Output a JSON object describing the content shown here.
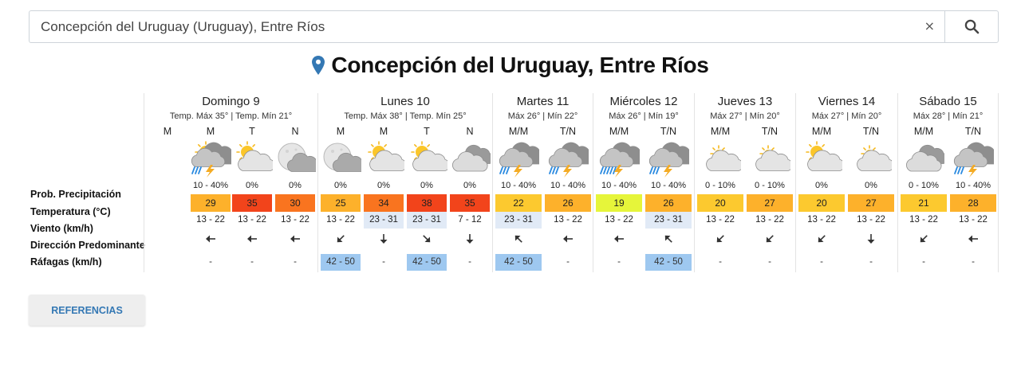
{
  "search": {
    "value": "Concepción del Uruguay (Uruguay), Entre Ríos",
    "clear_glyph": "×"
  },
  "title": "Concepción del Uruguay, Entre Ríos",
  "row_labels": {
    "precip": "Prob. Precipitación",
    "temp": "Temperatura (°C)",
    "wind": "Viento (km/h)",
    "dir": "Dirección Predominante",
    "gust": "Ráfagas (km/h)"
  },
  "colors": {
    "accent": "#3478b4",
    "temp_19": "#e6f53a",
    "temp_20_22": "#fcc92f",
    "temp_25_29": "#fdb12b",
    "temp_30_34": "#f9741f",
    "temp_35_38": "#f2441b",
    "wind_highlight": "#e1eaf6",
    "gust_highlight": "#9ec8f0"
  },
  "days": [
    {
      "name": "Domingo 9",
      "temps": "Temp. Máx 35° | Temp. Mín 21°",
      "periods": [
        {
          "label": "M",
          "icon": "none",
          "prob": "",
          "temp": "",
          "wind": "",
          "dir": "",
          "gust": ""
        },
        {
          "label": "M",
          "icon": "cloud-storm-sun-icon",
          "prob": "10 - 40%",
          "temp": "29",
          "wind": "13 - 22",
          "dir": "left",
          "gust": "-"
        },
        {
          "label": "T",
          "icon": "cloud-sun-icon",
          "prob": "0%",
          "temp": "35",
          "wind": "13 - 22",
          "dir": "left",
          "gust": "-"
        },
        {
          "label": "N",
          "icon": "cloud-moon-icon",
          "prob": "0%",
          "temp": "30",
          "wind": "13 - 22",
          "dir": "left",
          "gust": "-"
        }
      ]
    },
    {
      "name": "Lunes 10",
      "temps": "Temp. Máx 38° | Temp. Mín 25°",
      "periods": [
        {
          "label": "M",
          "icon": "cloud-moon-icon",
          "prob": "0%",
          "temp": "25",
          "wind": "13 - 22",
          "dir": "down-left",
          "gust": "42 - 50"
        },
        {
          "label": "M",
          "icon": "cloud-sun-icon",
          "prob": "0%",
          "temp": "34",
          "wind": "23 - 31",
          "dir": "down",
          "gust": "-"
        },
        {
          "label": "T",
          "icon": "cloud-sun-icon",
          "prob": "0%",
          "temp": "38",
          "wind": "23 - 31",
          "dir": "down-right",
          "gust": "42 - 50"
        },
        {
          "label": "N",
          "icon": "cloud-icon",
          "prob": "0%",
          "temp": "35",
          "wind": "7 - 12",
          "dir": "down",
          "gust": "-"
        }
      ]
    },
    {
      "name": "Martes 11",
      "temps": "Máx 26° | Mín 22°",
      "periods": [
        {
          "label": "M/M",
          "icon": "cloud-storm-icon",
          "prob": "10 - 40%",
          "temp": "22",
          "wind": "23 - 31",
          "dir": "up-left",
          "gust": "42 - 50"
        },
        {
          "label": "T/N",
          "icon": "cloud-storm-icon",
          "prob": "10 - 40%",
          "temp": "26",
          "wind": "13 - 22",
          "dir": "left",
          "gust": "-"
        }
      ]
    },
    {
      "name": "Miércoles 12",
      "temps": "Máx 26° | Mín 19°",
      "periods": [
        {
          "label": "M/M",
          "icon": "cloud-storm-heavy-icon",
          "prob": "10 - 40%",
          "temp": "19",
          "wind": "13 - 22",
          "dir": "left",
          "gust": "-"
        },
        {
          "label": "T/N",
          "icon": "cloud-storm-icon",
          "prob": "10 - 40%",
          "temp": "26",
          "wind": "23 - 31",
          "dir": "up-left",
          "gust": "42 - 50"
        }
      ]
    },
    {
      "name": "Jueves 13",
      "temps": "Máx 27° | Mín 20°",
      "periods": [
        {
          "label": "M/M",
          "icon": "cloud-sun-small-icon",
          "prob": "0 - 10%",
          "temp": "20",
          "wind": "13 - 22",
          "dir": "down-left",
          "gust": "-"
        },
        {
          "label": "T/N",
          "icon": "cloud-sun-small-icon",
          "prob": "0 - 10%",
          "temp": "27",
          "wind": "13 - 22",
          "dir": "down-left",
          "gust": "-"
        }
      ]
    },
    {
      "name": "Viernes 14",
      "temps": "Máx 27° | Mín 20°",
      "periods": [
        {
          "label": "M/M",
          "icon": "cloud-sun-icon",
          "prob": "0%",
          "temp": "20",
          "wind": "13 - 22",
          "dir": "down-left",
          "gust": "-"
        },
        {
          "label": "T/N",
          "icon": "cloud-sun-small-icon",
          "prob": "0%",
          "temp": "27",
          "wind": "13 - 22",
          "dir": "down",
          "gust": "-"
        }
      ]
    },
    {
      "name": "Sábado 15",
      "temps": "Máx 28° | Mín 21°",
      "periods": [
        {
          "label": "M/M",
          "icon": "cloud-icon",
          "prob": "0 - 10%",
          "temp": "21",
          "wind": "13 - 22",
          "dir": "down-left",
          "gust": "-"
        },
        {
          "label": "T/N",
          "icon": "cloud-storm-icon",
          "prob": "10 - 40%",
          "temp": "28",
          "wind": "13 - 22",
          "dir": "left",
          "gust": "-"
        }
      ]
    }
  ],
  "references_button": "REFERENCIAS"
}
